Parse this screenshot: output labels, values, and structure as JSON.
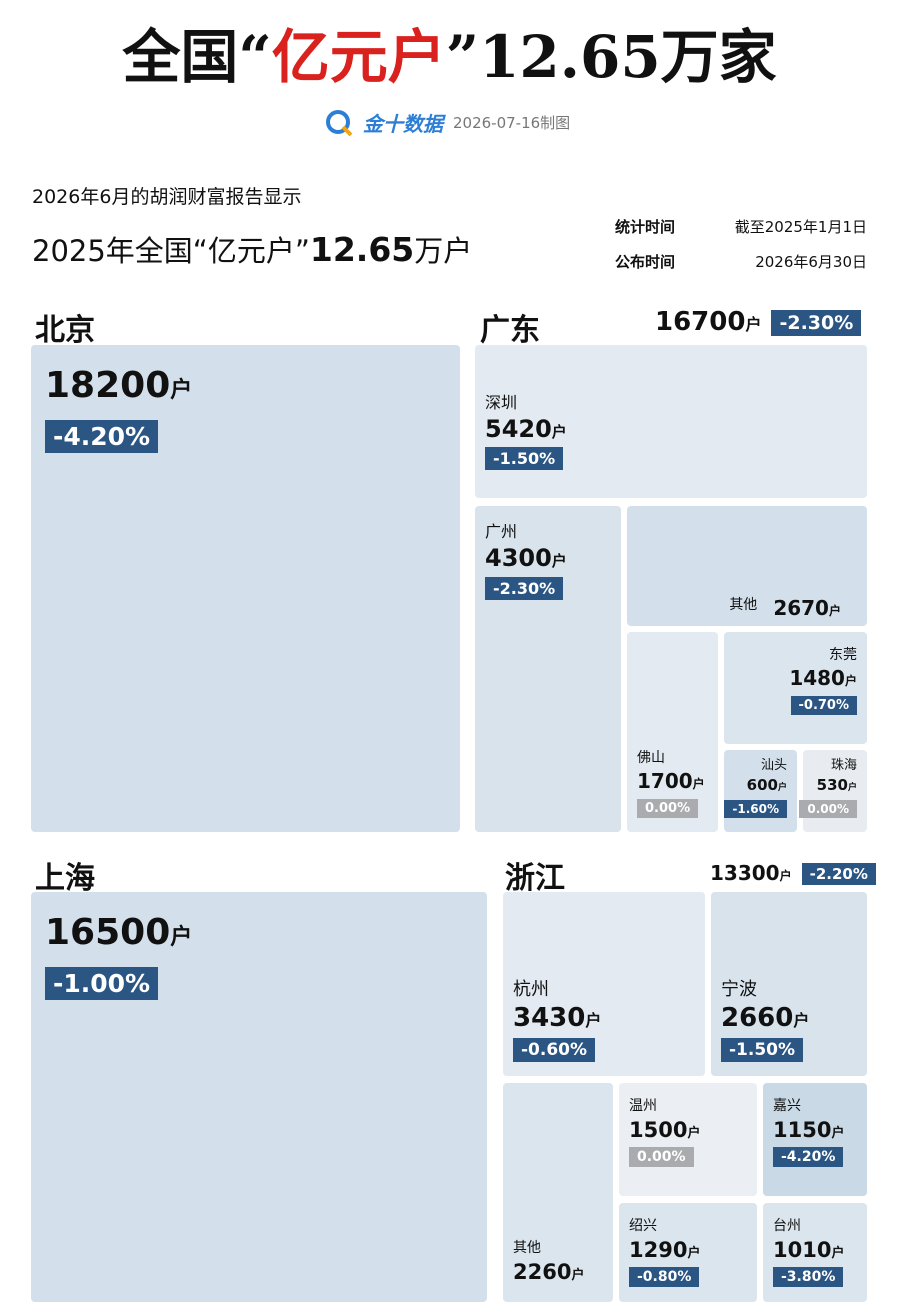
{
  "header": {
    "title_pre": "全国“",
    "title_highlight": "亿元户",
    "title_post": "”12.65万家",
    "source_logo": "金十数据",
    "source_date": "2026-07-16制图"
  },
  "intro": {
    "line1": "2026年6月的胡润财富报告显示",
    "headline_pre": "2025年全国“亿元户”",
    "headline_number": "12.65",
    "headline_unit": "万户"
  },
  "info": [
    {
      "label": "统计时间",
      "value": "截至2025年1月1日"
    },
    {
      "label": "公布时间",
      "value": "2026年6月30日"
    }
  ],
  "regions": [
    {
      "name": "北京",
      "count": "18200",
      "unit": "户",
      "change": "-4.20%",
      "cities": []
    },
    {
      "name": "广东",
      "count": "16700",
      "unit": "户",
      "change": "-2.30%",
      "cities": [
        {
          "name": "深圳",
          "count": "5420",
          "unit": "户",
          "change": "-1.50%"
        },
        {
          "name": "广州",
          "count": "4300",
          "unit": "户",
          "change": "-2.30%"
        },
        {
          "name": "其他",
          "count": "2670",
          "unit": "户"
        },
        {
          "name": "佛山",
          "count": "1700",
          "unit": "户",
          "change": "0.00%"
        },
        {
          "name": "东莞",
          "count": "1480",
          "unit": "户",
          "change": "-0.70%"
        },
        {
          "name": "汕头",
          "count": "600",
          "unit": "户",
          "change": "-1.60%"
        },
        {
          "name": "珠海",
          "count": "530",
          "unit": "户",
          "change": "0.00%"
        }
      ]
    },
    {
      "name": "上海",
      "count": "16500",
      "unit": "户",
      "change": "-1.00%",
      "cities": []
    },
    {
      "name": "浙江",
      "count": "13300",
      "unit": "户",
      "change": "-2.20%",
      "cities": [
        {
          "name": "杭州",
          "count": "3430",
          "unit": "户",
          "change": "-0.60%"
        },
        {
          "name": "宁波",
          "count": "2660",
          "unit": "户",
          "change": "-1.50%"
        },
        {
          "name": "其他",
          "count": "2260",
          "unit": "户"
        },
        {
          "name": "温州",
          "count": "1500",
          "unit": "户",
          "change": "0.00%"
        },
        {
          "name": "嘉兴",
          "count": "1150",
          "unit": "户",
          "change": "-4.20%"
        },
        {
          "name": "绍兴",
          "count": "1290",
          "unit": "户",
          "change": "-0.80%"
        },
        {
          "name": "台州",
          "count": "1010",
          "unit": "户",
          "change": "-3.80%"
        }
      ]
    }
  ]
}
